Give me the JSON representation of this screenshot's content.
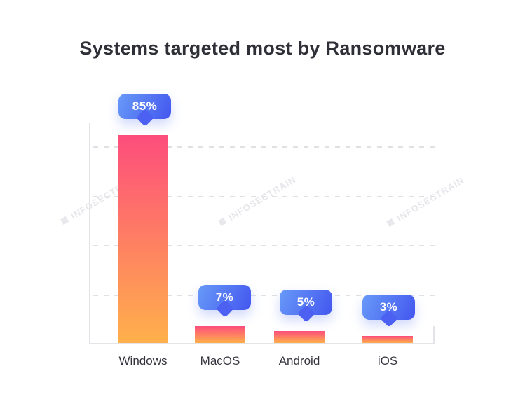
{
  "title": "Systems targeted most by Ransomware",
  "watermark": {
    "text": "INFOSECTRAIN"
  },
  "chart_data": {
    "type": "bar",
    "title": "Systems targeted most by Ransomware",
    "categories": [
      "Windows",
      "MacOS",
      "Android",
      "iOS"
    ],
    "values": [
      85,
      7,
      5,
      3
    ],
    "value_labels": [
      "85%",
      "7%",
      "5%",
      "3%"
    ],
    "xlabel": "",
    "ylabel": "",
    "ylim": [
      0,
      90
    ],
    "gridlines": {
      "values": [
        20,
        40,
        60,
        80
      ],
      "style": "dashed",
      "axis_tick_labels": "none"
    },
    "legend": "none",
    "colors": {
      "bar_gradient_top": "#fd4d7c",
      "bar_gradient_bottom": "#ffb04b",
      "bubble_gradient_start": "#689af8",
      "bubble_gradient_end": "#4356ef",
      "bubble_text": "#ffffff",
      "title_text": "#2f2f38",
      "axis_line": "#e4e4e8",
      "gridline": "#e0e0e5",
      "category_text": "#34343e",
      "watermark_text": "#e7e7eb"
    }
  }
}
